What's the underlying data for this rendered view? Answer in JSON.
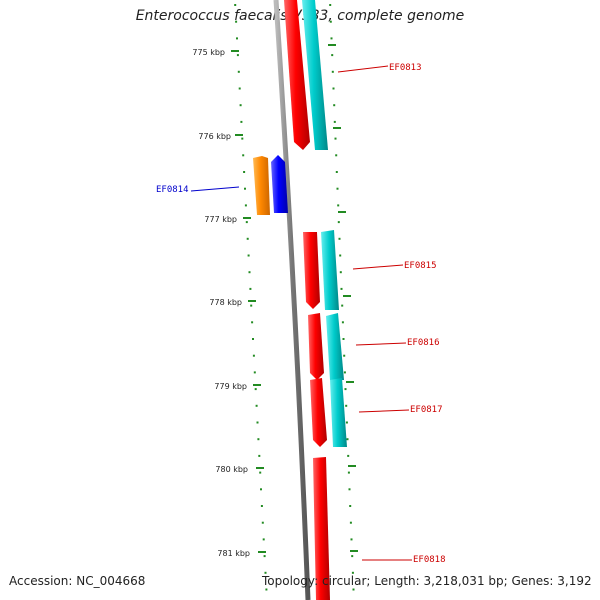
{
  "title": "Enterococcus faecalis V583, complete genome",
  "footer": {
    "accession": "Accession: NC_004668",
    "summary": "Topology: circular; Length: 3,218,031 bp; Genes: 3,192"
  },
  "ruler": {
    "unit": "kbp",
    "ticks": [
      "775 kbp",
      "776 kbp",
      "777 kbp",
      "778 kbp",
      "779 kbp",
      "780 kbp",
      "781 kbp"
    ]
  },
  "genes": {
    "forward_color": "#ff0000",
    "reverse_color": "#00cccc",
    "highlight_fwd_color": "#0000ff",
    "highlight_rev_color": "#ff8800",
    "labels": {
      "ef0813": "EF0813",
      "ef0814": "EF0814",
      "ef0815": "EF0815",
      "ef0816": "EF0816",
      "ef0817": "EF0817",
      "ef0818": "EF0818"
    },
    "label_colors": {
      "normal": "#cc0000",
      "highlight": "#0000cc"
    }
  },
  "colors": {
    "tick_green": "#228b22",
    "backbone_grey": "#888888"
  }
}
